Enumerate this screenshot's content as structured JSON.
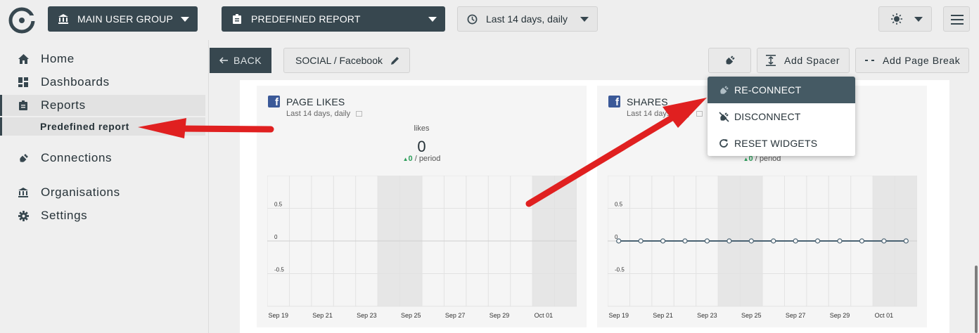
{
  "topbar": {
    "group_label": "MAIN USER GROUP",
    "report_label": "PREDEFINED REPORT",
    "period_label": "Last 14 days, daily"
  },
  "sidebar": {
    "items": [
      {
        "label": "Home",
        "icon": "home-icon"
      },
      {
        "label": "Dashboards",
        "icon": "dashboard-icon"
      },
      {
        "label": "Reports",
        "icon": "clipboard-icon"
      },
      {
        "label": "Predefined report"
      },
      {
        "label": "Connections",
        "icon": "plug-icon"
      },
      {
        "label": "Organisations",
        "icon": "bank-icon"
      },
      {
        "label": "Settings",
        "icon": "gear-icon"
      }
    ]
  },
  "toolbar": {
    "back_label": "BACK",
    "page_name": "SOCIAL / Facebook",
    "add_spacer_label": "Add Spacer",
    "add_page_break_label": "Add Page Break"
  },
  "connection_menu": {
    "items": [
      {
        "label": "RE-CONNECT"
      },
      {
        "label": "DISCONNECT"
      },
      {
        "label": "RESET WIDGETS"
      }
    ]
  },
  "widgets": [
    {
      "title": "PAGE LIKES",
      "subtitle": "Last 14 days, daily",
      "metric_label": "likes",
      "metric_value": "0",
      "change_value": "0",
      "change_suffix": "/ period"
    },
    {
      "title": "SHARES",
      "subtitle": "Last 14 days, daily",
      "change_value": "0",
      "change_suffix": "/ period"
    }
  ],
  "chart_data": [
    {
      "type": "line",
      "title": "PAGE LIKES",
      "x_tick_labels": [
        "Sep 19",
        "Sep 21",
        "Sep 23",
        "Sep 25",
        "Sep 27",
        "Sep 29",
        "Oct 01"
      ],
      "y_tick_labels": [
        "0.5",
        "0",
        "-0.5"
      ],
      "ylim": [
        -1,
        1
      ],
      "series": [],
      "grid": true
    },
    {
      "type": "line",
      "title": "SHARES",
      "x_tick_labels": [
        "Sep 19",
        "Sep 21",
        "Sep 23",
        "Sep 25",
        "Sep 27",
        "Sep 29",
        "Oct 01"
      ],
      "y_tick_labels": [
        "0.5",
        "0",
        "-0.5"
      ],
      "ylim": [
        -1,
        1
      ],
      "series": [
        {
          "values": [
            0,
            0,
            0,
            0,
            0,
            0,
            0,
            0,
            0,
            0,
            0,
            0,
            0,
            0
          ]
        }
      ],
      "grid": true
    }
  ],
  "colors": {
    "dark": "#37474f",
    "highlight": "#455a64",
    "facebook": "#3b5998",
    "annotation_arrow": "#e02020",
    "positive": "#2e9e5b",
    "series_line": "#4a6272"
  }
}
